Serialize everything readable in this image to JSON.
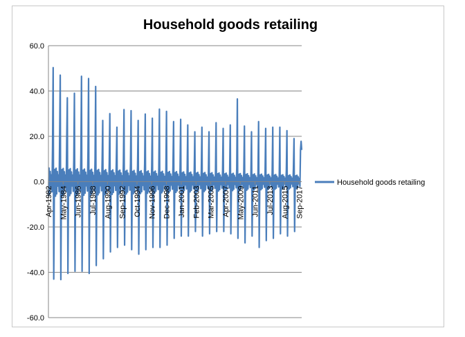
{
  "chart_data": {
    "type": "line",
    "title": "Household goods retailing",
    "xlabel": "",
    "ylabel": "",
    "ylim": [
      -60,
      60
    ],
    "yticks": [
      "60.0",
      "40.0",
      "20.0",
      "0.0",
      "-20.0",
      "-40.0",
      "-60.0"
    ],
    "x_range": [
      "Apr-1982",
      "Jan-2018"
    ],
    "x_tick_labels": [
      "Apr-1982",
      "May-1984",
      "Jun-1986",
      "Jul-1988",
      "Aug-1990",
      "Sep-1992",
      "Oct-1994",
      "Nov-1996",
      "Dec-1998",
      "Jan-2001",
      "Feb-2003",
      "Mar-2005",
      "Apr-2007",
      "May-2009",
      "Jun-2011",
      "Jul-2013",
      "Aug-2015",
      "Sep-2017"
    ],
    "grid": "horizontal",
    "legend_position": "right",
    "series": [
      {
        "name": "Household goods retailing",
        "color": "#4a7ebb",
        "december_peaks": [
          50.3,
          47.0,
          37.0,
          39.0,
          46.5,
          45.5,
          42.0,
          27.0,
          30.0,
          24.0,
          31.8,
          31.3,
          27.0,
          29.8,
          28.0,
          32.0,
          31.0,
          26.5,
          27.5,
          25.0,
          22.0,
          24.0,
          22.0,
          26.0,
          23.5,
          25.0,
          36.5,
          24.5,
          22.0,
          26.5,
          23.5,
          24.0,
          24.0,
          22.5,
          19.0,
          17.8
        ],
        "january_troughs": [
          -43.0,
          -43.2,
          -40.5,
          -39.5,
          -39.5,
          -40.5,
          -37.0,
          -34.0,
          -31.0,
          -29.0,
          -28.0,
          -30.0,
          -32.0,
          -30.0,
          -29.0,
          -29.0,
          -28.0,
          -25.0,
          -24.0,
          -24.0,
          -22.0,
          -24.0,
          -23.0,
          -22.0,
          -22.0,
          -23.0,
          -25.0,
          -27.0,
          -24.0,
          -29.0,
          -26.0,
          -25.0,
          -23.0,
          -24.0,
          -22.0,
          -23.0
        ],
        "november_values": [
          16.0,
          19.0,
          19.0,
          10.0,
          12.0,
          13.0,
          10.0,
          9.5,
          8.0,
          9.0,
          9.0,
          8.0,
          7.0,
          8.0,
          7.0,
          6.0,
          5.0,
          7.0,
          6.0,
          5.0,
          5.0,
          5.0,
          4.0,
          4.0,
          5.0,
          4.0,
          6.0,
          5.0,
          3.0,
          4.0,
          4.0,
          4.0,
          3.0,
          5.0,
          6.0,
          14.0
        ],
        "last_value": 14.0
      }
    ]
  }
}
